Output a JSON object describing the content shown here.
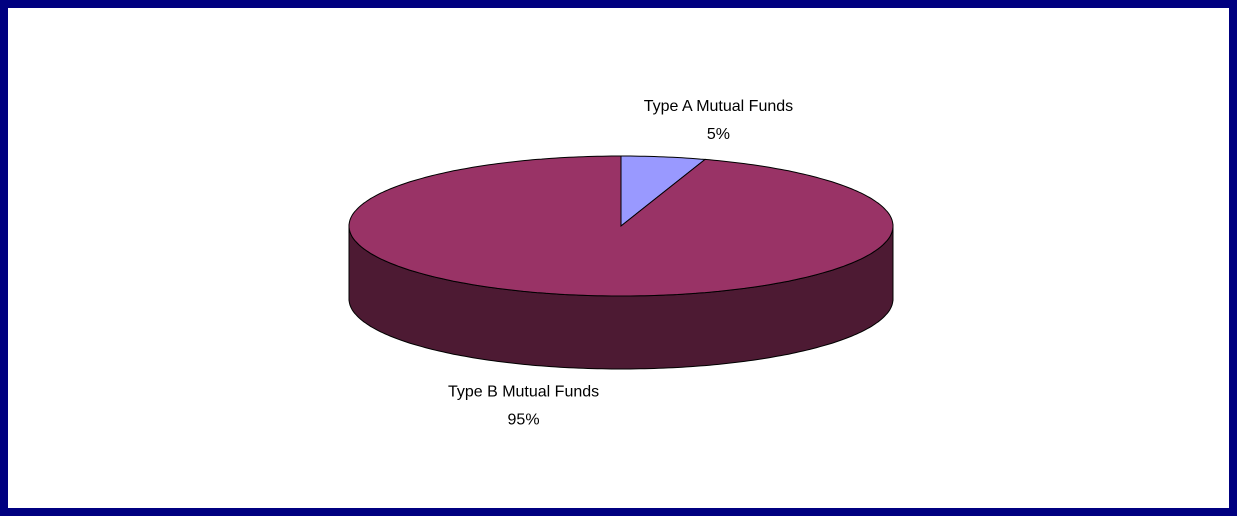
{
  "chart_data": {
    "type": "pie3d",
    "categories": [
      "Type A Mutual Funds",
      "Type B Mutual Funds"
    ],
    "values": [
      5,
      95
    ],
    "value_labels": [
      "5%",
      "95%"
    ],
    "colors": [
      "#9999ff",
      "#993366"
    ]
  }
}
